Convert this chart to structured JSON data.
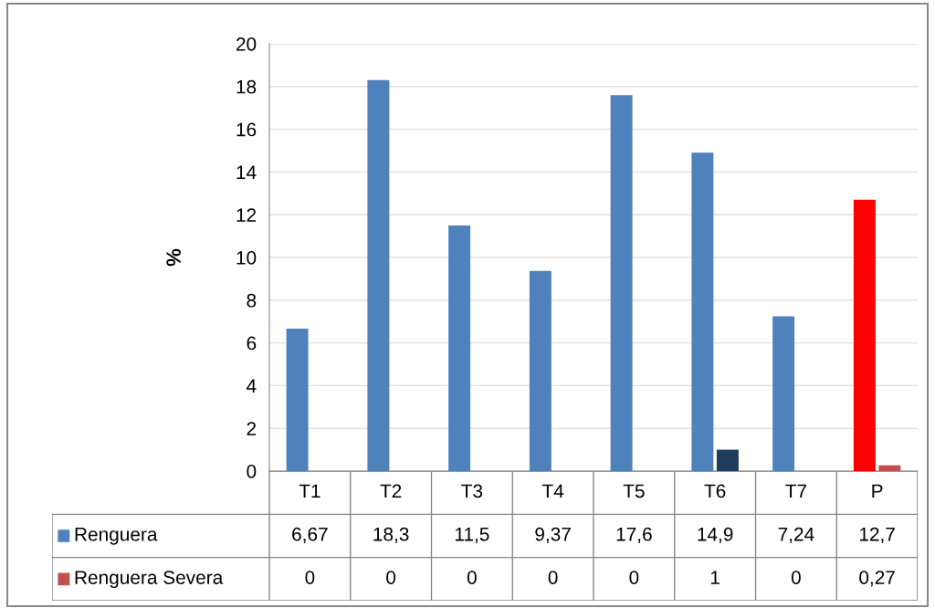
{
  "chart_data": {
    "type": "bar",
    "ylabel": "%",
    "categories": [
      "T1",
      "T2",
      "T3",
      "T4",
      "T5",
      "T6",
      "T7",
      "P"
    ],
    "series": [
      {
        "name": "Renguera",
        "color": "#4f81bd",
        "colors": [
          "#4f81bd",
          "#4f81bd",
          "#4f81bd",
          "#4f81bd",
          "#4f81bd",
          "#4f81bd",
          "#4f81bd",
          "#ff0000"
        ],
        "values": [
          6.67,
          18.3,
          11.5,
          9.37,
          17.6,
          14.9,
          7.24,
          12.7
        ],
        "value_labels": [
          "6,67",
          "18,3",
          "11,5",
          "9,37",
          "17,6",
          "14,9",
          "7,24",
          "12,7"
        ]
      },
      {
        "name": "Renguera Severa",
        "color": "#c0504d",
        "colors": [
          "#c0504d",
          "#c0504d",
          "#c0504d",
          "#c0504d",
          "#c0504d",
          "#1f3b5e",
          "#c0504d",
          "#c0504d"
        ],
        "values": [
          0,
          0,
          0,
          0,
          0,
          1,
          0,
          0.27
        ],
        "value_labels": [
          "0",
          "0",
          "0",
          "0",
          "0",
          "1",
          "0",
          "0,27"
        ]
      }
    ],
    "ylim": [
      0,
      20
    ],
    "yticks": [
      0,
      2,
      4,
      6,
      8,
      10,
      12,
      14,
      16,
      18,
      20
    ],
    "grid": "y",
    "legend": "bottom"
  }
}
